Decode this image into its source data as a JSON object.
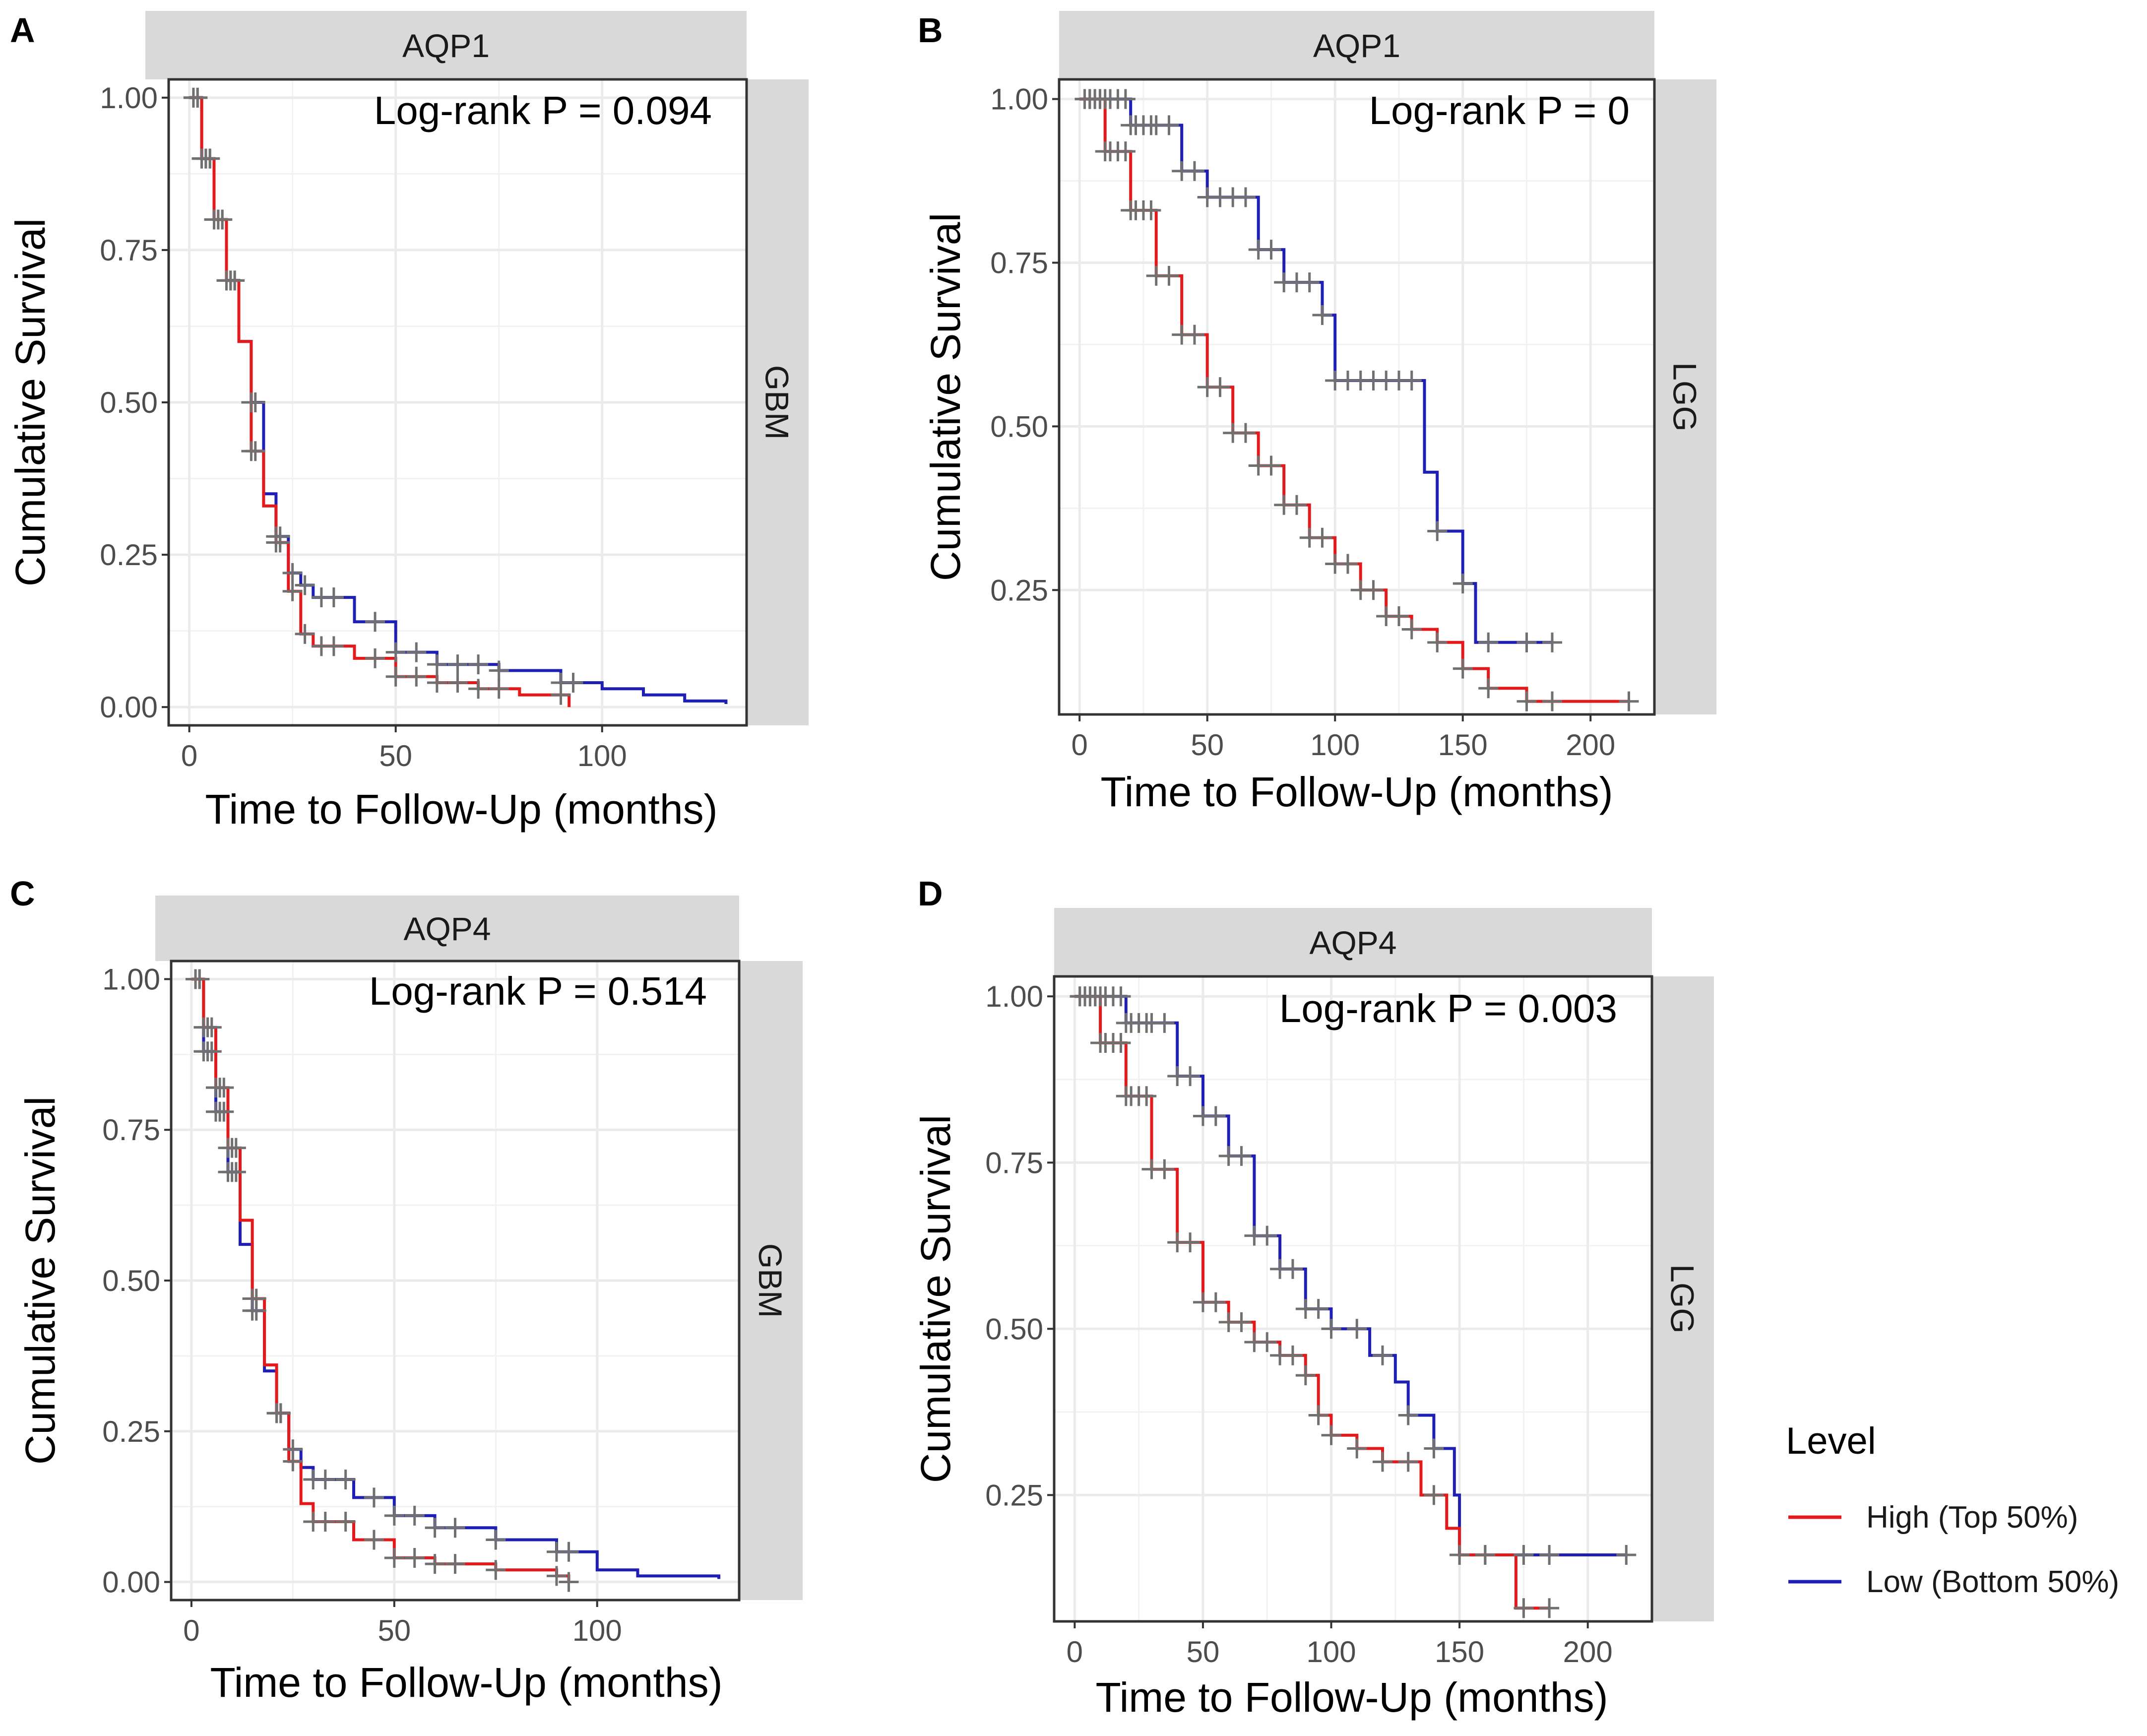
{
  "colors": {
    "high": "#e31a1c",
    "low": "#1f1fb4",
    "censor": "#707070",
    "strip": "#d9d9d9",
    "grid": "#ebebeb"
  },
  "legend": {
    "title": "Level",
    "items": [
      {
        "label": "High (Top 50%)",
        "key": "high"
      },
      {
        "label": "Low (Bottom 50%)",
        "key": "low"
      }
    ]
  },
  "chart_data": [
    {
      "panel": "A",
      "type": "line",
      "title": "AQP1",
      "facet": "GBM",
      "annotation": "Log-rank P = 0.094",
      "xlabel": "Time to Follow-Up (months)",
      "ylabel": "Cumulative Survival",
      "xlim": [
        -5,
        135
      ],
      "ylim": [
        -0.03,
        1.03
      ],
      "xticks": [
        0,
        50,
        100
      ],
      "yticks": [
        0,
        0.25,
        0.5,
        0.75,
        1
      ],
      "ytick_labels": [
        "0.00",
        "0.25",
        "0.50",
        "0.75",
        "1.00"
      ],
      "series": [
        {
          "name": "High (Top 50%)",
          "key": "high",
          "x": [
            0,
            3,
            6,
            9,
            12,
            15,
            18,
            21,
            24,
            27,
            30,
            40,
            50,
            60,
            70,
            80,
            92
          ],
          "y": [
            1.0,
            0.9,
            0.8,
            0.7,
            0.6,
            0.42,
            0.33,
            0.27,
            0.19,
            0.12,
            0.1,
            0.08,
            0.05,
            0.04,
            0.03,
            0.02,
            0.0
          ]
        },
        {
          "name": "Low (Bottom 50%)",
          "key": "low",
          "x": [
            0,
            3,
            6,
            9,
            12,
            15,
            18,
            21,
            24,
            27,
            30,
            40,
            50,
            60,
            75,
            90,
            100,
            110,
            120,
            130
          ],
          "y": [
            1.0,
            0.9,
            0.8,
            0.7,
            0.6,
            0.5,
            0.35,
            0.28,
            0.22,
            0.2,
            0.18,
            0.14,
            0.09,
            0.07,
            0.06,
            0.04,
            0.03,
            0.02,
            0.01,
            0.005
          ]
        }
      ],
      "censor_x": [
        1,
        2,
        3,
        4,
        5,
        6,
        7,
        8,
        9,
        10,
        11,
        15,
        16,
        21,
        22,
        25,
        28,
        32,
        35,
        45,
        50,
        55,
        60,
        65,
        70,
        75,
        90,
        93
      ]
    },
    {
      "panel": "B",
      "type": "line",
      "title": "AQP1",
      "facet": "LGG",
      "annotation": "Log-rank P = 0",
      "xlabel": "Time to Follow-Up (months)",
      "ylabel": "Cumulative Survival",
      "xlim": [
        -8,
        225
      ],
      "ylim": [
        0.06,
        1.03
      ],
      "xticks": [
        0,
        50,
        100,
        150,
        200
      ],
      "yticks": [
        0.25,
        0.5,
        0.75,
        1
      ],
      "ytick_labels": [
        "0.25",
        "0.50",
        "0.75",
        "1.00"
      ],
      "series": [
        {
          "name": "High (Top 50%)",
          "key": "high",
          "x": [
            0,
            10,
            20,
            30,
            40,
            50,
            60,
            70,
            80,
            90,
            100,
            110,
            120,
            130,
            140,
            150,
            160,
            175,
            215
          ],
          "y": [
            1.0,
            0.92,
            0.83,
            0.73,
            0.64,
            0.56,
            0.49,
            0.44,
            0.38,
            0.33,
            0.29,
            0.25,
            0.21,
            0.19,
            0.17,
            0.13,
            0.1,
            0.08,
            0.08
          ]
        },
        {
          "name": "Low (Bottom 50%)",
          "key": "low",
          "x": [
            0,
            20,
            40,
            50,
            70,
            80,
            95,
            100,
            120,
            125,
            135,
            140,
            145,
            150,
            155,
            160,
            185
          ],
          "y": [
            1.0,
            0.96,
            0.89,
            0.85,
            0.77,
            0.72,
            0.67,
            0.57,
            0.57,
            0.57,
            0.43,
            0.34,
            0.34,
            0.26,
            0.17,
            0.17,
            0.17
          ]
        }
      ],
      "censor_x": [
        2,
        4,
        6,
        8,
        10,
        12,
        15,
        18,
        20,
        22,
        25,
        28,
        30,
        35,
        40,
        45,
        50,
        55,
        60,
        65,
        70,
        75,
        80,
        85,
        90,
        95,
        100,
        105,
        110,
        115,
        120,
        125,
        130,
        140,
        150,
        160,
        175,
        185,
        215
      ]
    },
    {
      "panel": "C",
      "type": "line",
      "title": "AQP4",
      "facet": "GBM",
      "annotation": "Log-rank P = 0.514",
      "xlabel": "Time to Follow-Up (months)",
      "ylabel": "Cumulative Survival",
      "xlim": [
        -5,
        135
      ],
      "ylim": [
        -0.03,
        1.03
      ],
      "xticks": [
        0,
        50,
        100
      ],
      "yticks": [
        0,
        0.25,
        0.5,
        0.75,
        1
      ],
      "ytick_labels": [
        "0.00",
        "0.25",
        "0.50",
        "0.75",
        "1.00"
      ],
      "series": [
        {
          "name": "High (Top 50%)",
          "key": "high",
          "x": [
            0,
            3,
            6,
            9,
            12,
            15,
            18,
            21,
            24,
            27,
            30,
            40,
            50,
            60,
            75,
            90,
            93
          ],
          "y": [
            1.0,
            0.92,
            0.82,
            0.72,
            0.6,
            0.47,
            0.36,
            0.28,
            0.2,
            0.13,
            0.1,
            0.07,
            0.04,
            0.03,
            0.02,
            0.01,
            0.0
          ]
        },
        {
          "name": "Low (Bottom 50%)",
          "key": "low",
          "x": [
            0,
            3,
            6,
            9,
            12,
            15,
            18,
            21,
            24,
            27,
            30,
            40,
            50,
            60,
            75,
            90,
            100,
            110,
            120,
            130
          ],
          "y": [
            1.0,
            0.88,
            0.78,
            0.68,
            0.56,
            0.45,
            0.35,
            0.28,
            0.22,
            0.19,
            0.17,
            0.14,
            0.11,
            0.09,
            0.07,
            0.05,
            0.02,
            0.01,
            0.01,
            0.005
          ]
        }
      ],
      "censor_x": [
        1,
        2,
        3,
        4,
        5,
        6,
        7,
        8,
        9,
        10,
        11,
        15,
        16,
        21,
        22,
        25,
        30,
        33,
        38,
        45,
        50,
        55,
        60,
        65,
        75,
        90,
        93
      ]
    },
    {
      "panel": "D",
      "type": "line",
      "title": "AQP4",
      "facet": "LGG",
      "annotation": "Log-rank P = 0.003",
      "xlabel": "Time to Follow-Up (months)",
      "ylabel": "Cumulative Survival",
      "xlim": [
        -8,
        225
      ],
      "ylim": [
        0.06,
        1.03
      ],
      "xticks": [
        0,
        50,
        100,
        150,
        200
      ],
      "yticks": [
        0.25,
        0.5,
        0.75,
        1
      ],
      "ytick_labels": [
        "0.25",
        "0.50",
        "0.75",
        "1.00"
      ],
      "series": [
        {
          "name": "High (Top 50%)",
          "key": "high",
          "x": [
            0,
            10,
            20,
            30,
            40,
            50,
            60,
            70,
            80,
            90,
            95,
            100,
            110,
            120,
            135,
            145,
            150,
            160,
            172,
            185
          ],
          "y": [
            1.0,
            0.93,
            0.85,
            0.74,
            0.63,
            0.54,
            0.51,
            0.48,
            0.46,
            0.43,
            0.37,
            0.34,
            0.32,
            0.3,
            0.25,
            0.2,
            0.16,
            0.16,
            0.08,
            0.08
          ]
        },
        {
          "name": "Low (Bottom 50%)",
          "key": "low",
          "x": [
            0,
            20,
            40,
            50,
            60,
            70,
            80,
            90,
            100,
            115,
            125,
            130,
            140,
            148,
            150,
            160,
            175,
            215
          ],
          "y": [
            1.0,
            0.96,
            0.88,
            0.82,
            0.76,
            0.64,
            0.59,
            0.53,
            0.5,
            0.46,
            0.42,
            0.37,
            0.32,
            0.25,
            0.16,
            0.16,
            0.16,
            0.16
          ]
        }
      ],
      "censor_x": [
        2,
        4,
        6,
        8,
        10,
        12,
        15,
        18,
        20,
        22,
        25,
        28,
        30,
        35,
        40,
        45,
        50,
        55,
        60,
        65,
        70,
        75,
        80,
        85,
        90,
        95,
        100,
        110,
        120,
        130,
        140,
        150,
        160,
        175,
        185,
        215
      ]
    }
  ]
}
